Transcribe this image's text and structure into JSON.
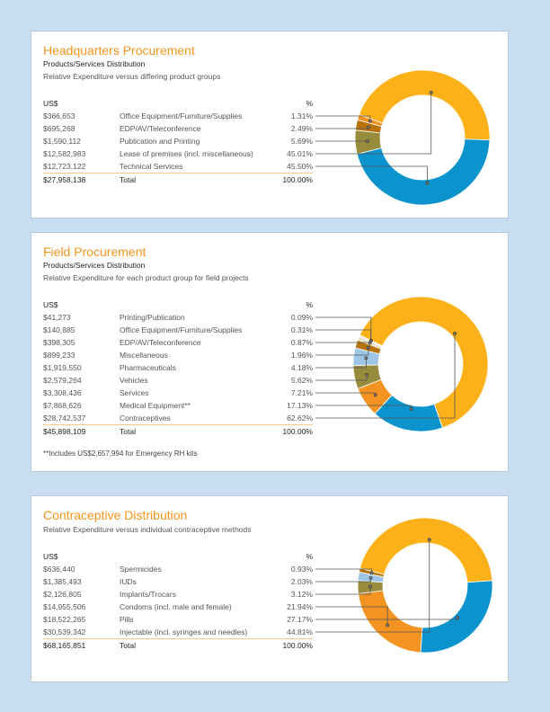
{
  "colors": {
    "page_bg": "#C9DDF0",
    "title": "#F7941D",
    "yellow": "#FDB119",
    "blue": "#0A93CD",
    "orange": "#F39322",
    "olive": "#978B3C",
    "brown": "#B8730D",
    "light_blue": "#9DC6E6",
    "beige": "#E9DFC0",
    "light_gray": "#D4D4D4"
  },
  "panels": [
    {
      "title": "Headquarters Procurement",
      "subtitle": "Products/Services Distribution",
      "description": "Relative Expenditure versus differing product groups",
      "header": {
        "amount": "US$",
        "pct": "%"
      },
      "rows": [
        {
          "amount": "$366,653",
          "label": "Office Equipment/Furniture/Supplies",
          "pct": "1.31%",
          "value": 1.31,
          "color": "#F39322"
        },
        {
          "amount": "$695,268",
          "label": "EDP/AV/Teleconference",
          "pct": "2.49%",
          "value": 2.49,
          "color": "#B8730D"
        },
        {
          "amount": "$1,590,112",
          "label": "Publication and Printing",
          "pct": "5.69%",
          "value": 5.69,
          "color": "#978B3C"
        },
        {
          "amount": "$12,582,983",
          "label": "Lease of premises (incl. miscellaneous)",
          "pct": "45.01%",
          "value": 45.01,
          "color": "#FDB119"
        },
        {
          "amount": "$12,723,122",
          "label": "Technical Services",
          "pct": "45.50%",
          "value": 45.5,
          "color": "#0A93CD"
        }
      ],
      "total": {
        "amount": "$27,958,138",
        "label": "Total",
        "pct": "100.00%"
      }
    },
    {
      "title": "Field Procurement",
      "subtitle": "Products/Services Distribution",
      "description": "Relative Expenditure for each product group for field projects",
      "header": {
        "amount": "US$",
        "pct": "%"
      },
      "rows": [
        {
          "amount": "$41,273",
          "label": "Printing/Publication",
          "pct": "0.09%",
          "value": 0.09,
          "color": "#F3EBD3"
        },
        {
          "amount": "$140,885",
          "label": "Office Equipment/Furniture/Supplies",
          "pct": "0.31%",
          "value": 0.31,
          "color": "#D4D4D4"
        },
        {
          "amount": "$398,305",
          "label": "EDP/AV/Teleconference",
          "pct": "0.87%",
          "value": 0.87,
          "color": "#E9DFC0"
        },
        {
          "amount": "$899,233",
          "label": "Miscellaneous",
          "pct": "1.96%",
          "value": 1.96,
          "color": "#B8730D"
        },
        {
          "amount": "$1,919,550",
          "label": "Pharmaceuticals",
          "pct": "4.18%",
          "value": 4.18,
          "color": "#9DC6E6"
        },
        {
          "amount": "$2,579,264",
          "label": "Vehicles",
          "pct": "5.62%",
          "value": 5.62,
          "color": "#978B3C"
        },
        {
          "amount": "$3,308,436",
          "label": "Services",
          "pct": "7.21%",
          "value": 7.21,
          "color": "#F39322"
        },
        {
          "amount": "$7,868,626",
          "label": "Medical Equipment**",
          "pct": "17.13%",
          "value": 17.13,
          "color": "#0A93CD"
        },
        {
          "amount": "$28,742,537",
          "label": "Contraceptives",
          "pct": "62.62%",
          "value": 62.62,
          "color": "#FDB119"
        }
      ],
      "total": {
        "amount": "$45,898,109",
        "label": "Total",
        "pct": "100.00%"
      },
      "footnote": "**Includes US$2,657,994 for Emergency RH kits"
    },
    {
      "title": "Contraceptive Distribution",
      "description": "Relative Expenditure versus individual contraceptive methods",
      "header": {
        "amount": "US$",
        "pct": "%"
      },
      "rows": [
        {
          "amount": "$636,440",
          "label": "Spermicides",
          "pct": "0.93%",
          "value": 0.93,
          "color": "#B8730D"
        },
        {
          "amount": "$1,385,493",
          "label": "IUDs",
          "pct": "2.03%",
          "value": 2.03,
          "color": "#9DC6E6"
        },
        {
          "amount": "$2,126,805",
          "label": "Implants/Trocars",
          "pct": "3.12%",
          "value": 3.12,
          "color": "#978B3C"
        },
        {
          "amount": "$14,955,506",
          "label": "Condoms (incl. male and female)",
          "pct": "21.94%",
          "value": 21.94,
          "color": "#F39322"
        },
        {
          "amount": "$18,522,265",
          "label": "Pills",
          "pct": "27.17%",
          "value": 27.17,
          "color": "#0A93CD"
        },
        {
          "amount": "$30,539,342",
          "label": "Injectable (incl. syringes and needles)",
          "pct": "44.81%",
          "value": 44.81,
          "color": "#FDB119"
        }
      ],
      "total": {
        "amount": "$68,165,851",
        "label": "Total",
        "pct": "100.00%"
      }
    }
  ]
}
